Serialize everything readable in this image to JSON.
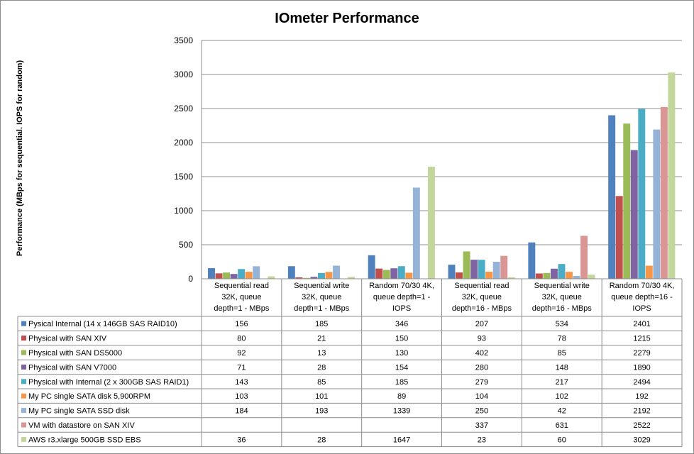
{
  "chart_data": {
    "type": "bar",
    "title": "IOmeter Performance",
    "xlabel": "",
    "ylabel": "Performance  (MBps for sequential. IOPS for random)",
    "ylim": [
      0,
      3500
    ],
    "yticks": [
      0,
      500,
      1000,
      1500,
      2000,
      2500,
      3000,
      3500
    ],
    "grid": true,
    "legend": "data-table",
    "categories": [
      [
        "Sequential read",
        "32K, queue",
        "depth=1 - MBps"
      ],
      [
        "Sequential write",
        "32K, queue",
        "depth=1 - MBps"
      ],
      [
        "Random 70/30 4K,",
        "queue depth=1 -",
        "IOPS"
      ],
      [
        "Sequential read",
        "32K, queue",
        "depth=16 - MBps"
      ],
      [
        "Sequential write",
        "32K, queue",
        "depth=16 - MBps"
      ],
      [
        "Random 70/30 4K,",
        "queue depth=16 -",
        "IOPS"
      ]
    ],
    "series": [
      {
        "name": "Pysical Internal (14 x 146GB SAS RAID10)",
        "color": "#4F81BD",
        "values": [
          156,
          185,
          346,
          207,
          534,
          2401
        ]
      },
      {
        "name": "Physical with SAN XIV",
        "color": "#C0504D",
        "values": [
          80,
          21,
          150,
          93,
          78,
          1215
        ]
      },
      {
        "name": "Physical with SAN DS5000",
        "color": "#9BBB59",
        "values": [
          92,
          13,
          130,
          402,
          85,
          2279
        ]
      },
      {
        "name": "Physical with SAN V7000",
        "color": "#8064A2",
        "values": [
          71,
          28,
          154,
          280,
          148,
          1890
        ]
      },
      {
        "name": "Physical with Internal (2 x 300GB SAS RAID1)",
        "color": "#4BACC6",
        "values": [
          143,
          85,
          185,
          279,
          217,
          2494
        ]
      },
      {
        "name": "My PC single SATA disk 5,900RPM",
        "color": "#F79646",
        "values": [
          103,
          101,
          89,
          104,
          102,
          192
        ]
      },
      {
        "name": "My PC single SATA SSD disk",
        "color": "#95B3D7",
        "values": [
          184,
          193,
          1339,
          250,
          42,
          2192
        ]
      },
      {
        "name": "VM with datastore on SAN XIV",
        "color": "#D99694",
        "values": [
          null,
          null,
          null,
          337,
          631,
          2522
        ]
      },
      {
        "name": "AWS r3.xlarge 500GB SSD EBS",
        "color": "#C3D69B",
        "values": [
          36,
          28,
          1647,
          23,
          60,
          3029
        ]
      }
    ]
  }
}
